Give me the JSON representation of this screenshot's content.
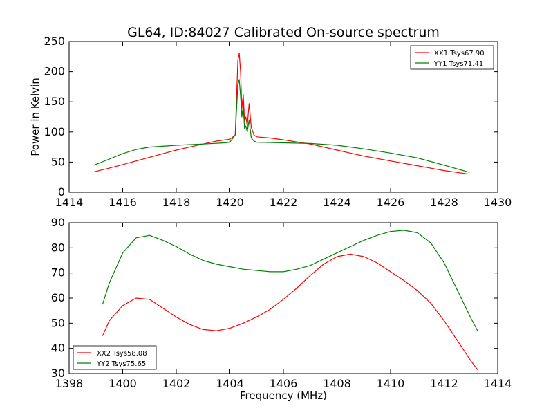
{
  "figure": {
    "title": "GL64, ID:84027 Calibrated On-source spectrum",
    "xlabel": "Frequency (MHz)"
  },
  "chart_data": [
    {
      "type": "line",
      "title": "GL64, ID:84027 Calibrated On-source spectrum",
      "xlabel": "",
      "ylabel": "Power in Kelvin",
      "xlim": [
        1414,
        1430
      ],
      "ylim": [
        0,
        250
      ],
      "xticks": [
        1414,
        1416,
        1418,
        1420,
        1422,
        1424,
        1426,
        1428,
        1430
      ],
      "yticks": [
        0,
        50,
        100,
        150,
        200,
        250
      ],
      "grid": false,
      "legend": "top-right",
      "series": [
        {
          "name": "XX1 Tsys67.90",
          "color": "#ff0000",
          "x": [
            1414.93,
            1415.5,
            1416.0,
            1416.5,
            1417.0,
            1417.5,
            1418.0,
            1418.5,
            1419.0,
            1419.5,
            1420.0,
            1420.2,
            1420.3,
            1420.35,
            1420.4,
            1420.45,
            1420.5,
            1420.55,
            1420.6,
            1420.65,
            1420.72,
            1420.8,
            1420.9,
            1421.0,
            1421.5,
            1422.0,
            1423.0,
            1424.0,
            1425.0,
            1426.0,
            1427.0,
            1428.0,
            1428.95
          ],
          "y": [
            34,
            40,
            46,
            52,
            58,
            64,
            70,
            75,
            80,
            85,
            88,
            95,
            218,
            231,
            200,
            140,
            162,
            118,
            125,
            110,
            147,
            108,
            95,
            92,
            90,
            87,
            80,
            70,
            60,
            52,
            44,
            36,
            30
          ]
        },
        {
          "name": "YY1 Tsys71.41",
          "color": "#008000",
          "x": [
            1414.93,
            1415.5,
            1416.0,
            1416.5,
            1417.0,
            1418.0,
            1419.0,
            1419.8,
            1420.0,
            1420.2,
            1420.3,
            1420.35,
            1420.4,
            1420.45,
            1420.5,
            1420.55,
            1420.6,
            1420.65,
            1420.72,
            1420.8,
            1420.9,
            1421.0,
            1422.0,
            1423.0,
            1424.0,
            1425.0,
            1426.0,
            1427.0,
            1428.0,
            1428.95
          ],
          "y": [
            45,
            55,
            64,
            71,
            75,
            78,
            80,
            82,
            83,
            95,
            178,
            187,
            160,
            125,
            145,
            105,
            110,
            100,
            120,
            90,
            85,
            83,
            82,
            81,
            78,
            72,
            65,
            57,
            45,
            33
          ]
        }
      ]
    },
    {
      "type": "line",
      "title": "",
      "xlabel": "Frequency (MHz)",
      "ylabel": "",
      "xlim": [
        1398,
        1414
      ],
      "ylim": [
        30,
        90
      ],
      "xticks": [
        1398,
        1400,
        1402,
        1404,
        1406,
        1408,
        1410,
        1412,
        1414
      ],
      "yticks": [
        30,
        40,
        50,
        60,
        70,
        80,
        90
      ],
      "grid": false,
      "legend": "bottom-left",
      "series": [
        {
          "name": "XX2 Tsys58.08",
          "color": "#ff0000",
          "x": [
            1399.25,
            1399.5,
            1400.0,
            1400.5,
            1401.0,
            1401.5,
            1402.0,
            1402.5,
            1403.0,
            1403.5,
            1404.0,
            1404.5,
            1405.0,
            1405.5,
            1406.0,
            1406.5,
            1407.0,
            1407.5,
            1408.0,
            1408.5,
            1409.0,
            1409.5,
            1410.0,
            1410.5,
            1411.0,
            1411.5,
            1412.0,
            1412.5,
            1413.0,
            1413.25
          ],
          "y": [
            45,
            51,
            57,
            60,
            59.5,
            56,
            52.5,
            49.5,
            47.5,
            47,
            48,
            50,
            52.5,
            55.5,
            59.5,
            64,
            69,
            73.5,
            76.5,
            77.5,
            76.5,
            74,
            70.5,
            67,
            63,
            58,
            51,
            43,
            35,
            31.5
          ]
        },
        {
          "name": "YY2 Tsys75.65",
          "color": "#008000",
          "x": [
            1399.25,
            1399.5,
            1400.0,
            1400.5,
            1401.0,
            1401.5,
            1402.0,
            1402.5,
            1403.0,
            1403.5,
            1404.0,
            1404.5,
            1405.0,
            1405.5,
            1406.0,
            1406.5,
            1407.0,
            1407.5,
            1408.0,
            1408.5,
            1409.0,
            1409.5,
            1410.0,
            1410.5,
            1411.0,
            1411.5,
            1412.0,
            1412.5,
            1413.0,
            1413.25
          ],
          "y": [
            57.5,
            66,
            78,
            84,
            85,
            83,
            80.5,
            77.5,
            75,
            73.5,
            72.5,
            71.5,
            71,
            70.5,
            70.5,
            71.5,
            73,
            75.5,
            78,
            80.5,
            83,
            85,
            86.5,
            87,
            86,
            82,
            74,
            63,
            52,
            47
          ]
        }
      ]
    }
  ]
}
